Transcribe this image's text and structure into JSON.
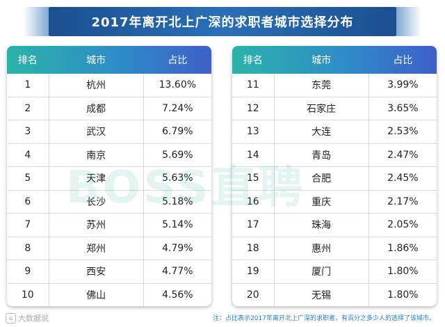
{
  "chart_data": {
    "type": "table",
    "title": "2017年离开北上广深的求职者城市选择分布",
    "columns": [
      "排名",
      "城市",
      "占比"
    ],
    "left_rows": [
      {
        "rank": "1",
        "city": "杭州",
        "share": "13.60%"
      },
      {
        "rank": "2",
        "city": "成都",
        "share": "7.24%"
      },
      {
        "rank": "3",
        "city": "武汉",
        "share": "6.79%"
      },
      {
        "rank": "4",
        "city": "南京",
        "share": "5.69%"
      },
      {
        "rank": "5",
        "city": "天津",
        "share": "5.63%"
      },
      {
        "rank": "6",
        "city": "长沙",
        "share": "5.18%"
      },
      {
        "rank": "7",
        "city": "苏州",
        "share": "5.14%"
      },
      {
        "rank": "8",
        "city": "郑州",
        "share": "4.79%"
      },
      {
        "rank": "9",
        "city": "西安",
        "share": "4.77%"
      },
      {
        "rank": "10",
        "city": "佛山",
        "share": "4.56%"
      }
    ],
    "right_rows": [
      {
        "rank": "11",
        "city": "东莞",
        "share": "3.99%"
      },
      {
        "rank": "12",
        "city": "石家庄",
        "share": "3.65%"
      },
      {
        "rank": "13",
        "city": "大连",
        "share": "2.53%"
      },
      {
        "rank": "14",
        "city": "青岛",
        "share": "2.47%"
      },
      {
        "rank": "15",
        "city": "合肥",
        "share": "2.45%"
      },
      {
        "rank": "16",
        "city": "重庆",
        "share": "2.17%"
      },
      {
        "rank": "17",
        "city": "珠海",
        "share": "2.05%"
      },
      {
        "rank": "18",
        "city": "惠州",
        "share": "1.86%"
      },
      {
        "rank": "19",
        "city": "厦门",
        "share": "1.80%"
      },
      {
        "rank": "20",
        "city": "无锡",
        "share": "1.80%"
      }
    ],
    "note": "注：占比表示2017年离开北上广深的求职者，有百分之多少人的选择了该城市。"
  },
  "watermark": "BOSS直聘",
  "logo_text": "大数据说"
}
